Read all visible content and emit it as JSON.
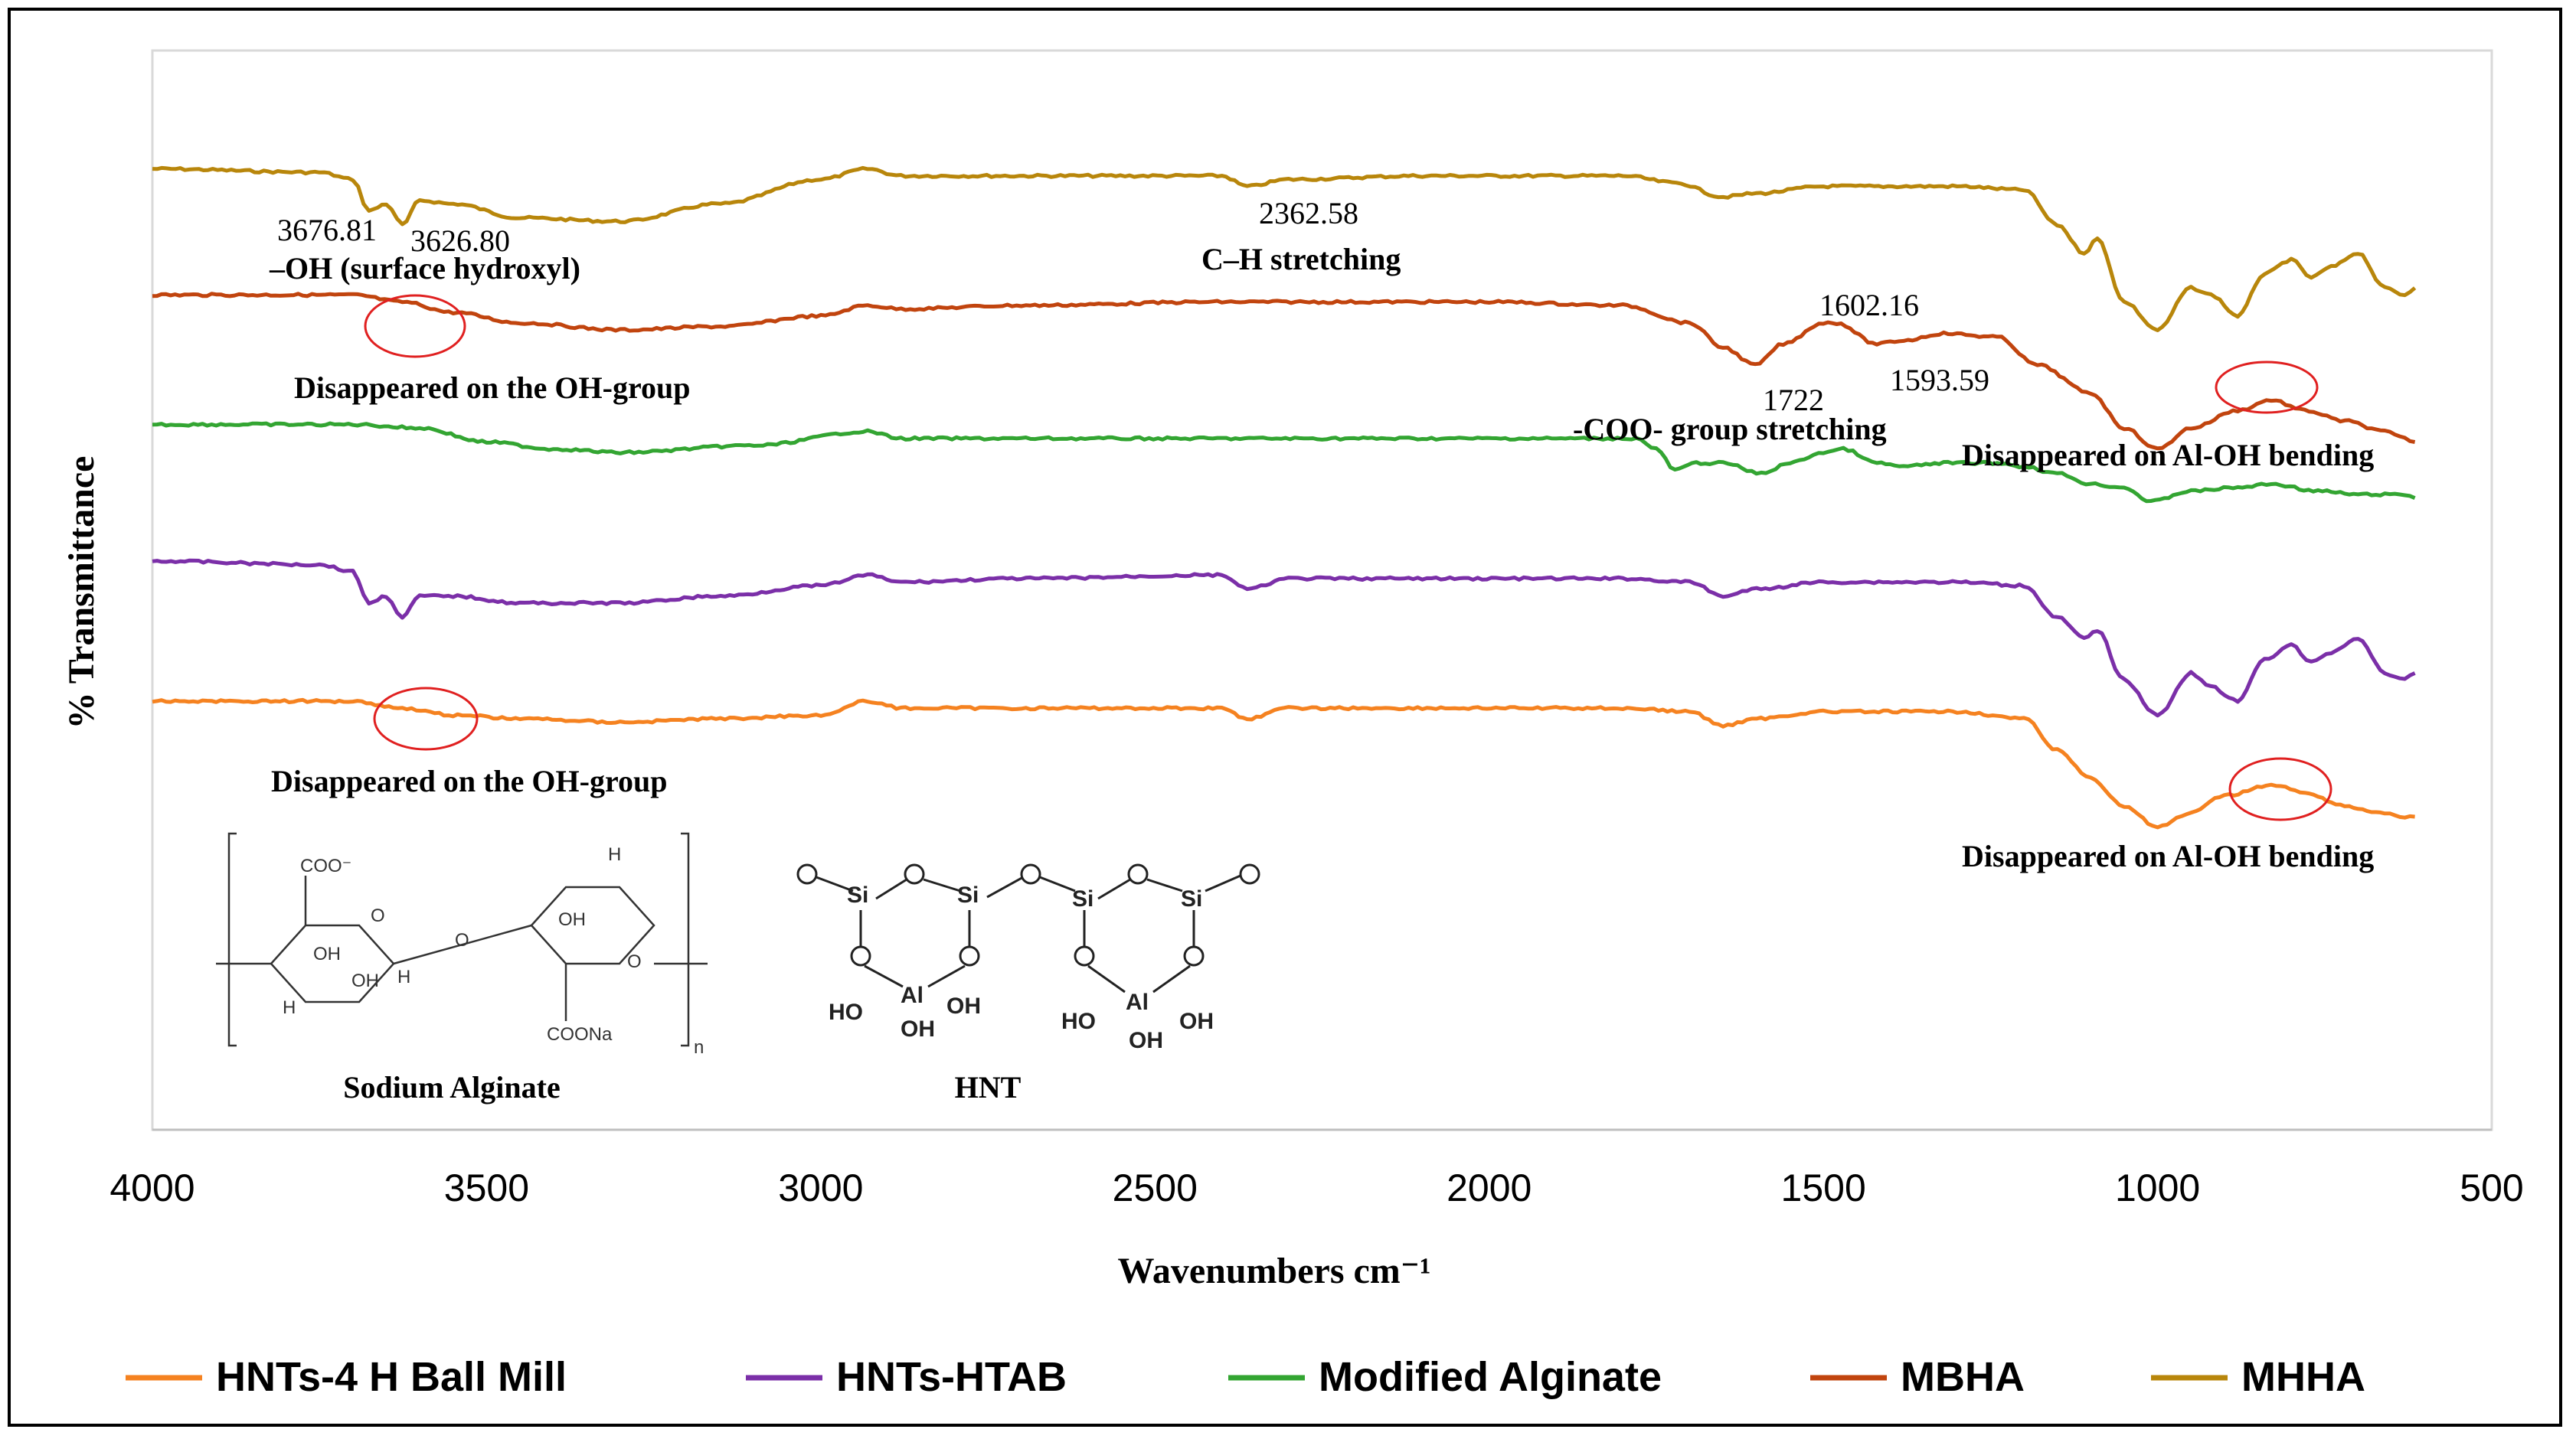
{
  "chart_data": {
    "type": "line",
    "title": "",
    "xlabel": "Wavenumbers cm⁻¹",
    "ylabel": "%  Transmittance",
    "xlim": [
      4000,
      500
    ],
    "x_ticks": [
      "4000",
      "3500",
      "3000",
      "2500",
      "2000",
      "1500",
      "1000",
      "500"
    ],
    "ylim": [
      0,
      100
    ],
    "y_units": "arbitrary offset",
    "grid": false,
    "legend_position": "bottom",
    "series": [
      {
        "name": "MHHA",
        "color": "#B8860B",
        "x": [
          4000,
          3750,
          3700,
          3676,
          3650,
          3626,
          3600,
          3550,
          3450,
          3300,
          3150,
          3000,
          2930,
          2880,
          2800,
          2600,
          2400,
          2362,
          2300,
          2100,
          1900,
          1800,
          1720,
          1650,
          1600,
          1500,
          1300,
          1200,
          1150,
          1110,
          1090,
          1050,
          1000,
          950,
          920,
          880,
          840,
          800,
          770,
          740,
          700,
          660,
          630,
          615
        ],
        "y": [
          96,
          95.5,
          94.5,
          90,
          91,
          88,
          91.5,
          91,
          89,
          88.5,
          91,
          94.5,
          96,
          95,
          95,
          95,
          95,
          93.5,
          94.5,
          95,
          95,
          95,
          94,
          92,
          92.5,
          93.5,
          93.5,
          93,
          88,
          84,
          86,
          77,
          73,
          79,
          78,
          75,
          81,
          83,
          80.5,
          82,
          84,
          79,
          78,
          79
        ]
      },
      {
        "name": "MBHA",
        "color": "#C1440E",
        "x": [
          4000,
          3700,
          3626,
          3550,
          3450,
          3300,
          3150,
          3000,
          2930,
          2880,
          2700,
          2400,
          2200,
          2000,
          1800,
          1700,
          1650,
          1602,
          1560,
          1500,
          1480,
          1420,
          1380,
          1320,
          1240,
          1180,
          1100,
          1050,
          1000,
          950,
          880,
          830,
          780,
          720,
          660,
          630,
          615
        ],
        "y": [
          78,
          78,
          77,
          75.5,
          74,
          73,
          73.5,
          75,
          76.5,
          76,
          76.5,
          77,
          77,
          77,
          76.5,
          74,
          70.5,
          68,
          71,
          74,
          74,
          71,
          71.5,
          72.5,
          72,
          68,
          64,
          59,
          56,
          59,
          61.5,
          63,
          61.5,
          60,
          58.5,
          57.5,
          57
        ]
      },
      {
        "name": "Modified Alginate",
        "color": "#33A532",
        "x": [
          4000,
          3700,
          3600,
          3500,
          3400,
          3300,
          3100,
          2930,
          2880,
          2700,
          2400,
          2100,
          1900,
          1780,
          1750,
          1722,
          1690,
          1650,
          1593,
          1550,
          1500,
          1470,
          1420,
          1380,
          1320,
          1240,
          1200,
          1150,
          1100,
          1050,
          1010,
          950,
          880,
          830,
          760,
          700,
          660,
          630,
          615
        ],
        "y": [
          59.5,
          59.5,
          59,
          57,
          56,
          55.5,
          56.5,
          58.5,
          57.5,
          57.5,
          57.5,
          57.5,
          57.5,
          57.5,
          56,
          53,
          54,
          54,
          52.5,
          54,
          55.5,
          56,
          54,
          53.5,
          54,
          54,
          53.5,
          52.5,
          51,
          50.5,
          48.5,
          50,
          50.5,
          51,
          50,
          49.5,
          49.5,
          49.5,
          49
        ]
      },
      {
        "name": "HNTs-HTAB",
        "color": "#7B2FA8",
        "x": [
          4000,
          3750,
          3700,
          3676,
          3650,
          3626,
          3600,
          3550,
          3450,
          3300,
          3150,
          3000,
          2930,
          2880,
          2700,
          2400,
          2362,
          2300,
          2100,
          1900,
          1800,
          1700,
          1650,
          1600,
          1500,
          1300,
          1200,
          1150,
          1110,
          1090,
          1050,
          1000,
          950,
          920,
          880,
          840,
          800,
          770,
          740,
          700,
          660,
          630,
          615
        ],
        "y": [
          40,
          39.5,
          38.5,
          34,
          35,
          32,
          35,
          35,
          34,
          34,
          35,
          36.5,
          38,
          37,
          37.5,
          38,
          36,
          37.5,
          37.5,
          37.5,
          37.5,
          37,
          35,
          36,
          37,
          37,
          36.5,
          32,
          29,
          30,
          23,
          18,
          24,
          22,
          20,
          26,
          28,
          25.5,
          27,
          29,
          24,
          23,
          24
        ]
      },
      {
        "name": "HNTs-4 H Ball Mill",
        "color": "#F58220",
        "x": [
          4000,
          3700,
          3626,
          3550,
          3450,
          3300,
          3150,
          3000,
          2930,
          2880,
          2700,
          2400,
          2362,
          2300,
          2100,
          1900,
          1800,
          1700,
          1650,
          1600,
          1500,
          1300,
          1200,
          1150,
          1100,
          1050,
          1000,
          950,
          900,
          830,
          780,
          720,
          660,
          630,
          615
        ],
        "y": [
          20,
          20,
          19,
          18,
          17.5,
          17,
          17.5,
          18,
          20,
          19,
          19,
          19,
          17.5,
          19,
          19,
          19,
          19,
          18.5,
          16.5,
          17.5,
          18.5,
          18.5,
          17.5,
          13,
          9,
          5,
          2,
          4,
          6.5,
          8,
          7,
          5,
          4,
          3.5,
          3.5
        ]
      }
    ],
    "annotations": [
      "3676.81",
      "3626.80",
      "–OH (surface hydroxyl)",
      "2362.58",
      "C–H stretching",
      "1602.16",
      "1593.59",
      "1722",
      "-COO- group stretching",
      "Disappeared on the OH-group",
      "Disappeared on Al-OH bending",
      "Disappeared on the OH-group",
      "Disappeared on Al-OH bending"
    ],
    "structure_labels": [
      "Sodium Alginate",
      "HNT"
    ]
  },
  "legend_order": [
    "HNTs-4 H Ball Mill",
    "HNTs-HTAB",
    "Modified Alginate",
    "MBHA",
    "MHHA"
  ],
  "alginate_atoms": [
    "COO⁻",
    "COONa",
    "H",
    "OH",
    "O",
    "n"
  ],
  "hnt_atoms": [
    "O",
    "Si",
    "Al",
    "HO",
    "OH"
  ]
}
